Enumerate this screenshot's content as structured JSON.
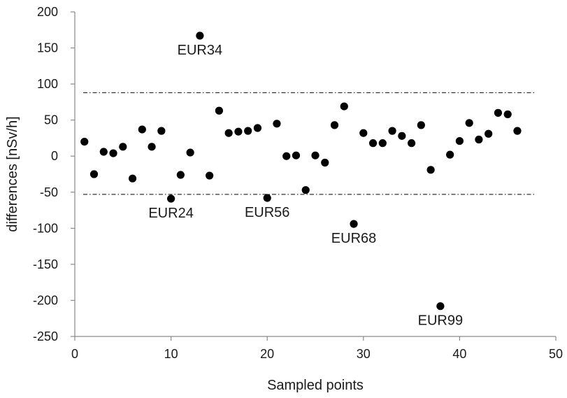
{
  "chart_data": {
    "type": "scatter",
    "title": "",
    "xlabel": "Sampled points",
    "ylabel": "differences [nSv/h]",
    "xlim": [
      0,
      50
    ],
    "ylim": [
      -250,
      200
    ],
    "xticks": [
      0,
      10,
      20,
      30,
      40,
      50
    ],
    "yticks": [
      -250,
      -200,
      -150,
      -100,
      -50,
      0,
      50,
      100,
      150,
      200
    ],
    "grid": false,
    "legend": "none",
    "marker_color": "#000000",
    "reference_lines": [
      {
        "y": 88,
        "style": "dash-dot",
        "color": "#333333"
      },
      {
        "y": -53,
        "style": "dash-dot",
        "color": "#333333"
      }
    ],
    "series": [
      {
        "x": [
          1,
          2,
          3,
          4,
          5,
          6,
          7,
          8,
          9,
          10,
          11,
          12,
          13,
          14,
          15,
          16,
          17,
          18,
          19,
          20,
          21,
          22,
          23,
          24,
          25,
          26,
          27,
          28,
          29,
          30,
          31,
          32,
          33,
          34,
          35,
          36,
          37,
          38,
          39,
          40,
          41,
          42,
          43,
          44,
          45,
          46
        ],
        "y": [
          20,
          -25,
          6,
          4,
          13,
          -31,
          37,
          13,
          35,
          -59,
          -26,
          5,
          167,
          -27,
          63,
          32,
          34,
          35,
          39,
          -58,
          45,
          0,
          1,
          -47,
          1,
          -9,
          43,
          69,
          -94,
          32,
          18,
          18,
          35,
          28,
          18,
          43,
          -19,
          -208,
          2,
          21,
          46,
          23,
          31,
          60,
          58,
          35
        ]
      }
    ],
    "annotations": [
      {
        "text": "EUR34",
        "x": 13,
        "y": 167
      },
      {
        "text": "EUR24",
        "x": 10,
        "y": -59
      },
      {
        "text": "EUR56",
        "x": 20,
        "y": -58
      },
      {
        "text": "EUR68",
        "x": 29,
        "y": -94
      },
      {
        "text": "EUR99",
        "x": 38,
        "y": -208
      }
    ]
  }
}
